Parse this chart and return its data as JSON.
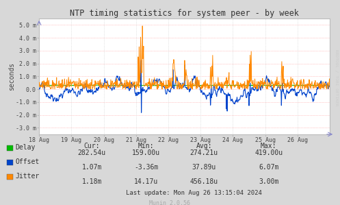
{
  "title": "NTP timing statistics for system peer - by week",
  "ylabel": "seconds",
  "bg_color": "#d8d8d8",
  "plot_bg_color": "#ffffff",
  "grid_color_h": "#ff9999",
  "grid_color_v": "#cccccc",
  "ylim": [
    -3.5,
    5.5
  ],
  "yticks": [
    -3.0,
    -2.0,
    -1.0,
    0.0,
    1.0,
    2.0,
    3.0,
    4.0,
    5.0
  ],
  "ytick_labels": [
    "-3.0 m",
    "-2.0 m",
    "-1.0 m",
    "0.0",
    "1.0 m",
    "2.0 m",
    "3.0 m",
    "4.0 m",
    "5.0 m"
  ],
  "xtick_labels": [
    "18 Aug",
    "19 Aug",
    "20 Aug",
    "21 Aug",
    "22 Aug",
    "23 Aug",
    "24 Aug",
    "25 Aug",
    "26 Aug"
  ],
  "delay_color": "#00bb00",
  "offset_color": "#0044cc",
  "jitter_color": "#ff8800",
  "legend_items": [
    {
      "label": "Delay",
      "color": "#00bb00"
    },
    {
      "label": "Offset",
      "color": "#0044cc"
    },
    {
      "label": "Jitter",
      "color": "#ff8800"
    }
  ],
  "table_headers": [
    "Cur:",
    "Min:",
    "Avg:",
    "Max:"
  ],
  "table_data": [
    [
      "282.54u",
      "159.00u",
      "274.21u",
      "419.00u"
    ],
    [
      "1.07m",
      "-3.36m",
      "37.89u",
      "6.07m"
    ],
    [
      "1.18m",
      "14.17u",
      "456.18u",
      "3.00m"
    ]
  ],
  "last_update": "Last update: Mon Aug 26 13:15:04 2024",
  "munin_version": "Munin 2.0.56",
  "rrdtool_label": "RRDTOOL / TOBI OETIKER",
  "n_points": 800
}
